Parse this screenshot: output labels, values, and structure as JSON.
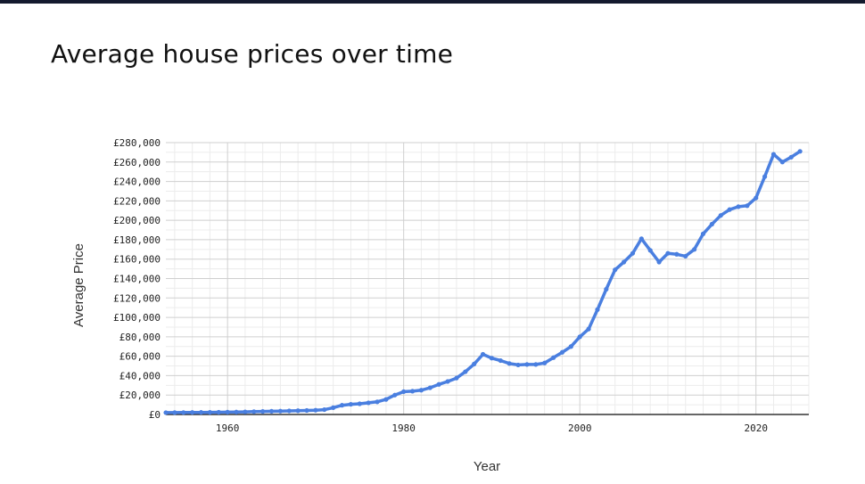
{
  "page": {
    "title": "Average house prices over time"
  },
  "colors": {
    "series": "#4a7fe0",
    "grid_major": "#cfcfcf",
    "grid_minor": "#ececec",
    "axis": "#333333",
    "top_bar": "#141a2e"
  },
  "chart_data": {
    "type": "line",
    "title": "",
    "xlabel": "Year",
    "ylabel": "Average Price",
    "xlim": [
      1953,
      2026
    ],
    "ylim": [
      0,
      280000
    ],
    "x_ticks": [
      1960,
      1980,
      2000,
      2020
    ],
    "y_ticks": [
      0,
      20000,
      40000,
      60000,
      80000,
      100000,
      120000,
      140000,
      160000,
      180000,
      200000,
      220000,
      240000,
      260000,
      280000
    ],
    "y_tick_labels": [
      "£0",
      "£20,000",
      "£40,000",
      "£60,000",
      "£80,000",
      "£100,000",
      "£120,000",
      "£140,000",
      "£160,000",
      "£180,000",
      "£200,000",
      "£220,000",
      "£240,000",
      "£260,000",
      "£280,000"
    ],
    "x_tick_labels": [
      "1960",
      "1980",
      "2000",
      "2020"
    ],
    "grid": true,
    "legend": "none",
    "series": [
      {
        "x": [
          1953,
          1954,
          1955,
          1956,
          1957,
          1958,
          1959,
          1960,
          1961,
          1962,
          1963,
          1964,
          1965,
          1966,
          1967,
          1968,
          1969,
          1970,
          1971,
          1972,
          1973,
          1974,
          1975,
          1976,
          1977,
          1978,
          1979,
          1980,
          1981,
          1982,
          1983,
          1984,
          1985,
          1986,
          1987,
          1988,
          1989,
          1990,
          1991,
          1992,
          1993,
          1994,
          1995,
          1996,
          1997,
          1998,
          1999,
          2000,
          2001,
          2002,
          2003,
          2004,
          2005,
          2006,
          2007,
          2008,
          2009,
          2010,
          2011,
          2012,
          2013,
          2014,
          2015,
          2016,
          2017,
          2018,
          2019,
          2020,
          2021,
          2022,
          2023,
          2024,
          2025
        ],
        "values": [
          1900,
          1950,
          2000,
          2100,
          2150,
          2200,
          2300,
          2400,
          2500,
          2700,
          2900,
          3100,
          3300,
          3500,
          3700,
          3900,
          4100,
          4400,
          5000,
          7000,
          9500,
          10500,
          11000,
          12000,
          13000,
          15500,
          20000,
          23500,
          24000,
          25000,
          27500,
          31000,
          34000,
          37500,
          44000,
          52000,
          62000,
          58000,
          55500,
          52500,
          51000,
          51500,
          51500,
          53000,
          58500,
          64000,
          70000,
          80000,
          88000,
          108000,
          129000,
          149000,
          157000,
          166000,
          181000,
          169000,
          157000,
          166000,
          165000,
          163000,
          170000,
          186000,
          196000,
          205000,
          211000,
          214000,
          215000,
          223000,
          245000,
          268000,
          260000,
          265000,
          271000
        ]
      }
    ]
  }
}
